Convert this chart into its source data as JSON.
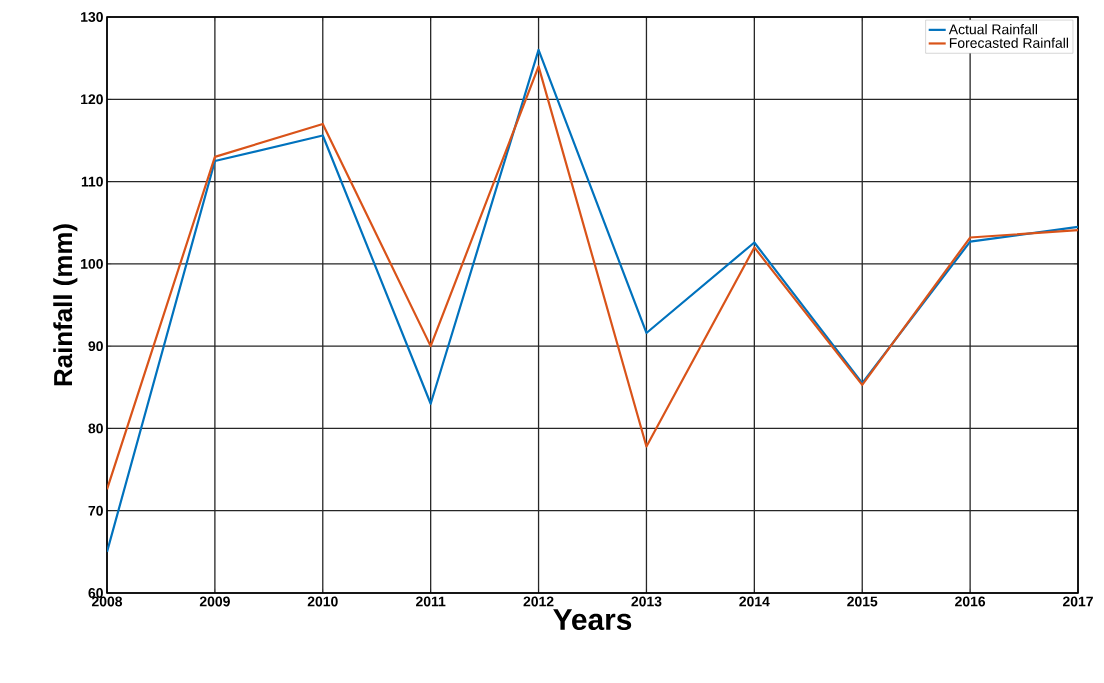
{
  "chart_data": {
    "type": "line",
    "xlabel": "Years",
    "ylabel": "Rainfall (mm)",
    "x": [
      2008,
      2009,
      2010,
      2011,
      2012,
      2013,
      2014,
      2015,
      2016,
      2017
    ],
    "series": [
      {
        "name": "Actual Rainfall",
        "color": "#0072bd",
        "values": [
          65,
          112.5,
          115.6,
          83,
          126,
          91.6,
          102.6,
          85.5,
          102.7,
          104.5
        ]
      },
      {
        "name": "Forecasted Rainfall",
        "color": "#d95319",
        "values": [
          72.6,
          113,
          117,
          90,
          124,
          77.8,
          102,
          85.3,
          103.2,
          104.1
        ]
      }
    ],
    "xlim": [
      2008,
      2017
    ],
    "xticks": [
      2008,
      2009,
      2010,
      2011,
      2012,
      2013,
      2014,
      2015,
      2016,
      2017
    ],
    "ylim": [
      60,
      130
    ],
    "yticks": [
      60,
      70,
      80,
      90,
      100,
      110,
      120,
      130
    ],
    "grid": true,
    "legend": "top right",
    "marker": "none",
    "line_style": "solid"
  }
}
